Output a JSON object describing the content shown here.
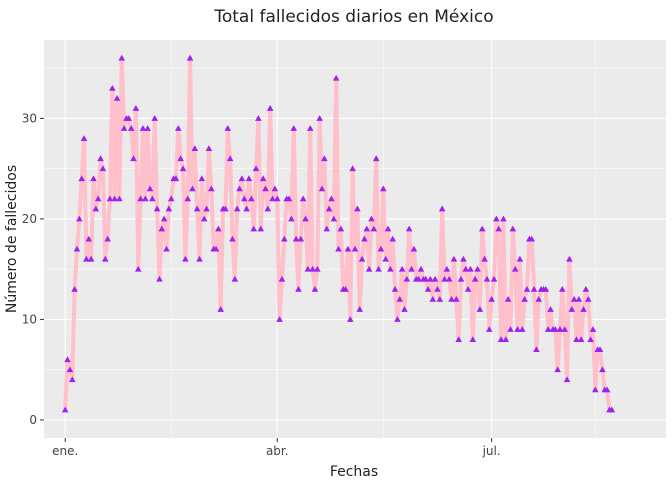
{
  "chart_data": {
    "type": "line",
    "title": "Total fallecidos diarios en México",
    "xlabel": "Fechas",
    "ylabel": "Número de fallecidos",
    "x_ticks": [
      {
        "label": "ene.",
        "day": 0
      },
      {
        "label": "abr.",
        "day": 90
      },
      {
        "label": "jul.",
        "day": 181
      }
    ],
    "y_ticks": [
      0,
      10,
      20,
      30
    ],
    "ylim": [
      -1.8,
      37.8
    ],
    "xlim": [
      -9,
      255
    ],
    "grid": true,
    "legend": "none",
    "colors": {
      "panel_background": "#ebebeb",
      "grid": "#ffffff",
      "line": "#ffc0cb",
      "marker": "#a020f0"
    },
    "series": [
      {
        "start_date": "ene. 1",
        "values": [
          1,
          6,
          5,
          4,
          13,
          17,
          20,
          24,
          28,
          16,
          18,
          16,
          24,
          21,
          22,
          26,
          25,
          16,
          18,
          22,
          33,
          22,
          32,
          22,
          36,
          29,
          30,
          30,
          29,
          26,
          31,
          15,
          22,
          29,
          22,
          29,
          23,
          22,
          30,
          21,
          14,
          19,
          20,
          17,
          21,
          22,
          24,
          24,
          29,
          26,
          25,
          16,
          22,
          36,
          23,
          27,
          21,
          16,
          24,
          20,
          21,
          27,
          23,
          17,
          17,
          19,
          11,
          21,
          21,
          29,
          26,
          18,
          14,
          21,
          23,
          24,
          22,
          21,
          24,
          22,
          19,
          25,
          30,
          19,
          24,
          23,
          21,
          31,
          22,
          23,
          22,
          10,
          14,
          18,
          22,
          22,
          20,
          29,
          18,
          13,
          18,
          22,
          20,
          15,
          29,
          15,
          13,
          15,
          30,
          23,
          26,
          19,
          21,
          22,
          20,
          34,
          17,
          19,
          13,
          13,
          17,
          10,
          25,
          17,
          21,
          11,
          16,
          18,
          19,
          15,
          20,
          19,
          26,
          15,
          17,
          23,
          16,
          19,
          15,
          18,
          13,
          10,
          12,
          15,
          11,
          14,
          19,
          15,
          17,
          14,
          14,
          15,
          14,
          14,
          13,
          14,
          12,
          14,
          13,
          12,
          21,
          14,
          15,
          14,
          12,
          16,
          12,
          8,
          14,
          16,
          15,
          13,
          15,
          8,
          14,
          15,
          11,
          19,
          16,
          14,
          9,
          12,
          14,
          20,
          19,
          8,
          20,
          8,
          12,
          9,
          19,
          15,
          9,
          16,
          9,
          12,
          13,
          18,
          18,
          13,
          7,
          12,
          13,
          13,
          13,
          9,
          11,
          9,
          9,
          5,
          9,
          13,
          9,
          4,
          16,
          11,
          12,
          8,
          12,
          8,
          11,
          13,
          12,
          8,
          9,
          3,
          7,
          7,
          5,
          3,
          3,
          1,
          1
        ]
      }
    ]
  }
}
